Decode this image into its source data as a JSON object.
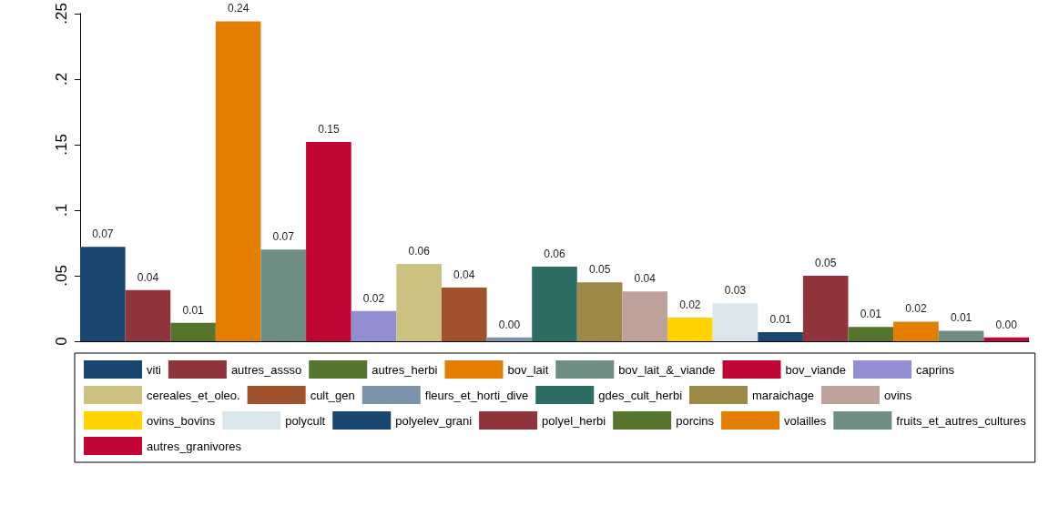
{
  "chart_data": {
    "type": "bar",
    "categories": [
      null
    ],
    "ylim": [
      0,
      0.25
    ],
    "yticks": [
      0,
      {
        "value": 0.05,
        "label": ".05"
      },
      {
        "value": 0.1,
        "label": ".1"
      },
      {
        "value": 0.15,
        "label": ".15"
      },
      {
        "value": 0.2,
        "label": ".2"
      },
      {
        "value": 0.25,
        "label": ".25"
      }
    ],
    "legend": "bottom",
    "series": [
      {
        "name": "viti",
        "color": "#1a476f",
        "values": [
          0.072
        ],
        "value_labels": [
          "0.07"
        ]
      },
      {
        "name": "autres_assso",
        "color": "#90353b",
        "values": [
          0.039
        ],
        "value_labels": [
          "0.04"
        ]
      },
      {
        "name": "autres_herbi",
        "color": "#55752f",
        "values": [
          0.014
        ],
        "value_labels": [
          "0.01"
        ]
      },
      {
        "name": "bov_lait",
        "color": "#e37e00",
        "values": [
          0.244
        ],
        "value_labels": [
          "0.24"
        ]
      },
      {
        "name": "bov_lait_&_viande",
        "color": "#6e8e84",
        "values": [
          0.07
        ],
        "value_labels": [
          "0.07"
        ]
      },
      {
        "name": "bov_viande",
        "color": "#c10534",
        "values": [
          0.152
        ],
        "value_labels": [
          "0.15"
        ]
      },
      {
        "name": "caprins",
        "color": "#938dd2",
        "values": [
          0.023
        ],
        "value_labels": [
          "0.02"
        ]
      },
      {
        "name": "cereales_et_oleo.",
        "color": "#cac27e",
        "values": [
          0.059
        ],
        "value_labels": [
          "0.06"
        ]
      },
      {
        "name": "cult_gen",
        "color": "#a0522d",
        "values": [
          0.041
        ],
        "value_labels": [
          "0.04"
        ]
      },
      {
        "name": "fleurs_et_horti_dive",
        "color": "#7b92a8",
        "values": [
          0.003
        ],
        "value_labels": [
          "0.00"
        ]
      },
      {
        "name": "gdes_cult_herbi",
        "color": "#2d6d66",
        "values": [
          0.057
        ],
        "value_labels": [
          "0.06"
        ]
      },
      {
        "name": "maraichage",
        "color": "#9c8847",
        "values": [
          0.045
        ],
        "value_labels": [
          "0.05"
        ]
      },
      {
        "name": "ovins",
        "color": "#bfa19c",
        "values": [
          0.038
        ],
        "value_labels": [
          "0.04"
        ]
      },
      {
        "name": "ovins_bovins",
        "color": "#ffd200",
        "values": [
          0.018
        ],
        "value_labels": [
          "0.02"
        ]
      },
      {
        "name": "polycult",
        "color": "#d9e6eb",
        "values": [
          0.029
        ],
        "value_labels": [
          "0.03"
        ]
      },
      {
        "name": "polyelev_grani",
        "color": "#1a476f",
        "values": [
          0.007
        ],
        "value_labels": [
          "0.01"
        ]
      },
      {
        "name": "polyel_herbi",
        "color": "#90353b",
        "values": [
          0.05
        ],
        "value_labels": [
          "0.05"
        ]
      },
      {
        "name": "porcins",
        "color": "#55752f",
        "values": [
          0.011
        ],
        "value_labels": [
          "0.01"
        ]
      },
      {
        "name": "volailles",
        "color": "#e37e00",
        "values": [
          0.015
        ],
        "value_labels": [
          "0.02"
        ]
      },
      {
        "name": "fruits_et_autres_cultures",
        "color": "#6e8e84",
        "values": [
          0.008
        ],
        "value_labels": [
          "0.01"
        ]
      },
      {
        "name": "autres_granivores",
        "color": "#c10534",
        "values": [
          0.003
        ],
        "value_labels": [
          "0.00"
        ]
      }
    ]
  }
}
